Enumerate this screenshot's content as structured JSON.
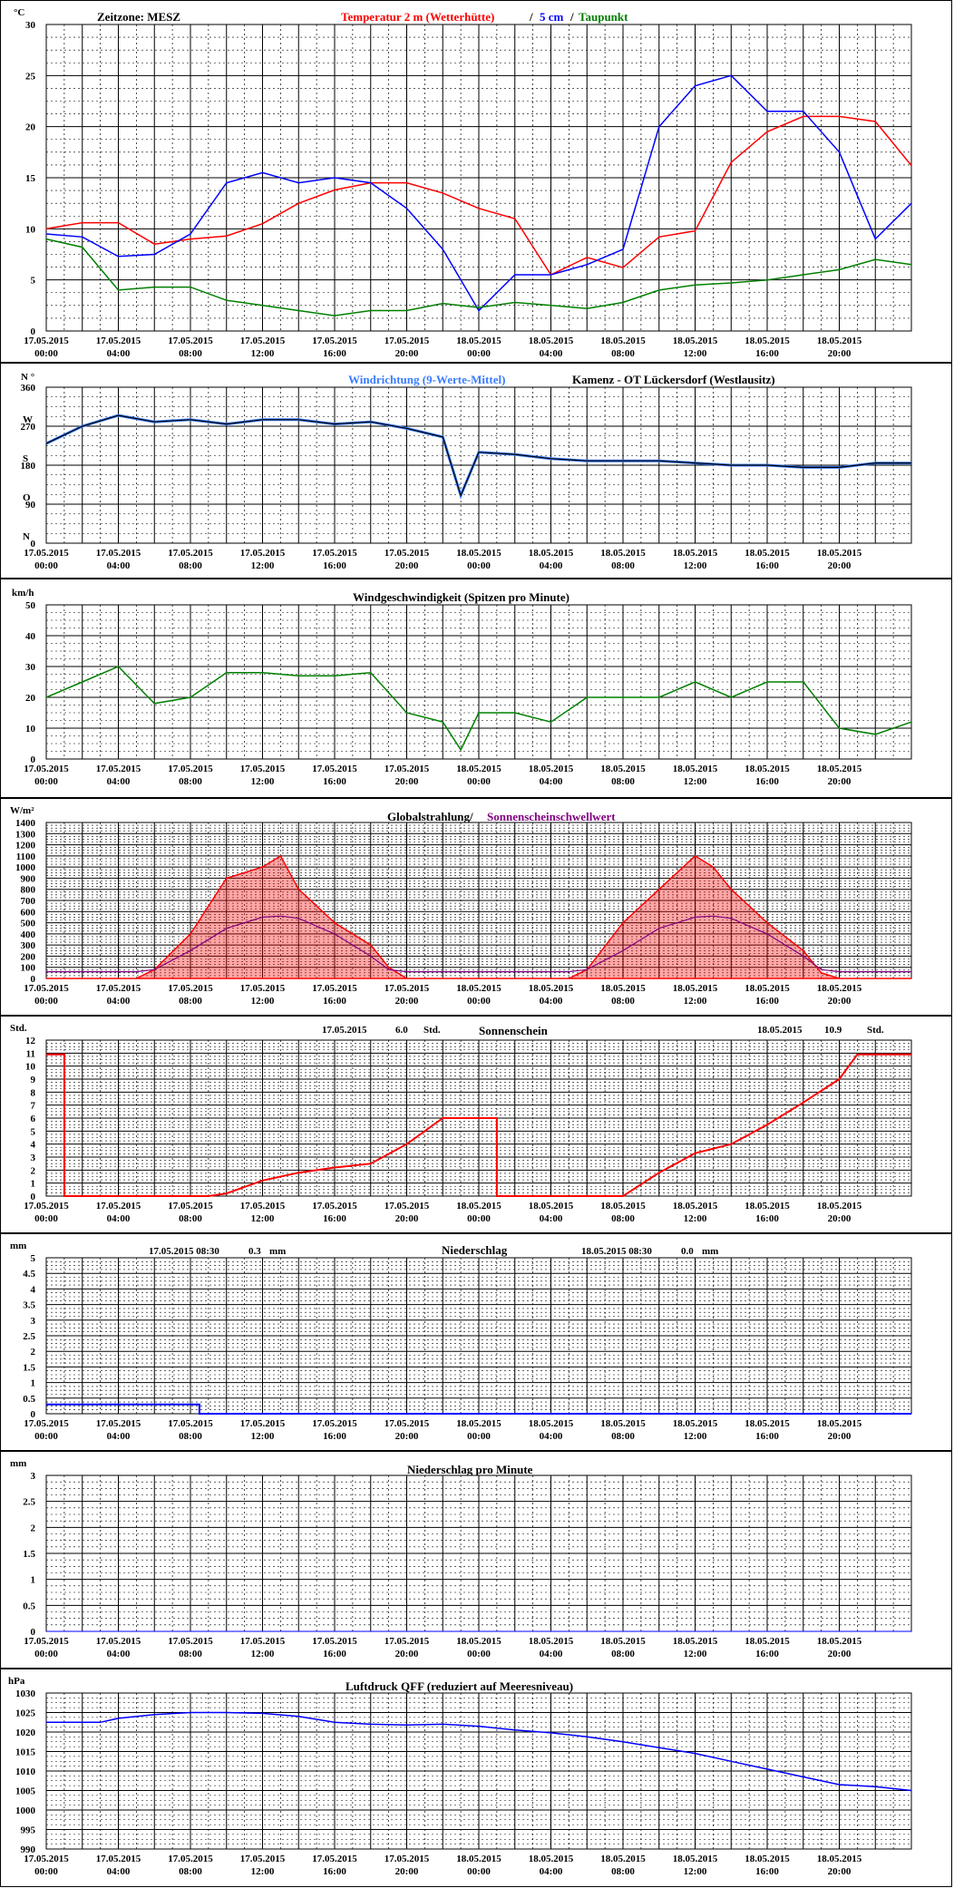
{
  "x_tick_labels": [
    {
      "date": "17.05.2015",
      "time": "00:00"
    },
    {
      "date": "17.05.2015",
      "time": "04:00"
    },
    {
      "date": "17.05.2015",
      "time": "08:00"
    },
    {
      "date": "17.05.2015",
      "time": "12:00"
    },
    {
      "date": "17.05.2015",
      "time": "16:00"
    },
    {
      "date": "17.05.2015",
      "time": "20:00"
    },
    {
      "date": "18.05.2015",
      "time": "00:00"
    },
    {
      "date": "18.05.2015",
      "time": "04:00"
    },
    {
      "date": "18.05.2015",
      "time": "08:00"
    },
    {
      "date": "18.05.2015",
      "time": "12:00"
    },
    {
      "date": "18.05.2015",
      "time": "16:00"
    },
    {
      "date": "18.05.2015",
      "time": "20:00"
    }
  ],
  "colors": {
    "grid": "#000000",
    "temperature": "#ff0000",
    "soil_5cm": "#0000ff",
    "dewpoint": "#008000",
    "wind_dir": "#3a7dff",
    "wind_dir_mean": "#000000",
    "wind_speed": "#008000",
    "radiation": "#ff0000",
    "threshold": "#800080",
    "sunshine": "#ff0000",
    "precip": "#0000ff",
    "pressure": "#0000ff"
  },
  "panels": {
    "temperature": {
      "unit": "°C",
      "timezone_label": "Zeitzone: MESZ",
      "legend_temp": "Temperatur 2 m (Wetterhütte)",
      "legend_sep1": "/",
      "legend_soil": "5 cm",
      "legend_sep2": "/",
      "legend_dew": "Taupunkt"
    },
    "wind_dir": {
      "unit": "N °",
      "legend_dir": "Windrichtung (9-Werte-Mittel)",
      "station": "Kamenz - OT Lückersdorf (Westlausitz)",
      "cardinals": [
        "N",
        "O",
        "S",
        "W"
      ]
    },
    "wind_speed": {
      "unit": "km/h",
      "title": "Windgeschwindigkeit (Spitzen pro Minute)"
    },
    "radiation": {
      "unit": "W/m²",
      "title_a": "Globalstrahlung/",
      "title_b": "Sonnenscheinschwellwert"
    },
    "sunshine": {
      "unit": "Std.",
      "title": "Sonnenschein",
      "day1_date": "17.05.2015",
      "day1_value": "6.0",
      "day1_unit": "Std.",
      "day2_date": "18.05.2015",
      "day2_value": "10.9",
      "day2_unit": "Std."
    },
    "precip": {
      "unit": "mm",
      "title": "Niederschlag",
      "day1_stamp": "17.05.2015 08:30",
      "day1_value": "0.3",
      "day1_unit": "mm",
      "day2_stamp": "18.05.2015 08:30",
      "day2_value": "0.0",
      "day2_unit": "mm"
    },
    "precip_minute": {
      "unit": "mm",
      "title": "Niederschlag pro Minute"
    },
    "pressure": {
      "unit": "hPa",
      "title": "Luftdruck QFF (reduziert auf Meeresniveau)"
    }
  },
  "chart_data": [
    {
      "type": "line",
      "title": "Temperatur 2 m (Wetterhütte) / 5 cm / Taupunkt",
      "ylabel": "°C",
      "ylim": [
        0,
        30
      ],
      "yticks": [
        0,
        5,
        10,
        15,
        20,
        25,
        30
      ],
      "x_hours": [
        0,
        2,
        4,
        6,
        8,
        10,
        12,
        14,
        16,
        18,
        20,
        22,
        24,
        26,
        28,
        30,
        32,
        34,
        36,
        38,
        40,
        42,
        44,
        46,
        48
      ],
      "series": [
        {
          "name": "Temperatur 2 m (Wetterhütte)",
          "values": [
            10,
            10.6,
            10.6,
            8.5,
            9,
            9.3,
            10.5,
            12.5,
            13.8,
            14.5,
            14.5,
            13.5,
            12,
            11,
            5.5,
            7.2,
            6.2,
            9.2,
            9.8,
            16.5,
            19.5,
            21,
            21,
            20.5,
            16.2
          ]
        },
        {
          "name": "5 cm",
          "values": [
            9.5,
            9.2,
            7.3,
            7.5,
            9.5,
            14.5,
            15.5,
            14.5,
            15,
            14.5,
            12,
            8,
            2,
            5.5,
            5.5,
            6.5,
            8,
            20,
            24,
            25,
            21.5,
            21.5,
            17.5,
            9,
            12.5
          ]
        },
        {
          "name": "Taupunkt",
          "values": [
            9,
            8.2,
            4,
            4.3,
            4.3,
            3,
            2.5,
            2,
            1.5,
            2,
            2,
            2.7,
            2.3,
            2.8,
            2.5,
            2.2,
            2.8,
            4,
            4.5,
            4.7,
            5,
            5.5,
            6,
            7,
            6.5
          ]
        }
      ]
    },
    {
      "type": "line",
      "title": "Windrichtung (9-Werte-Mittel)",
      "ylabel": "N °",
      "ylim": [
        0,
        360
      ],
      "yticks": [
        0,
        90,
        180,
        270,
        360
      ],
      "x_hours": [
        0,
        2,
        4,
        6,
        8,
        10,
        12,
        14,
        16,
        18,
        20,
        22,
        23,
        24,
        26,
        28,
        30,
        32,
        34,
        36,
        38,
        40,
        42,
        44,
        46,
        48
      ],
      "series": [
        {
          "name": "Windrichtung (9-Werte-Mittel)",
          "values": [
            230,
            270,
            295,
            280,
            285,
            275,
            285,
            285,
            275,
            280,
            265,
            245,
            110,
            210,
            205,
            195,
            190,
            190,
            190,
            185,
            180,
            180,
            175,
            175,
            185,
            185
          ]
        }
      ]
    },
    {
      "type": "line",
      "title": "Windgeschwindigkeit (Spitzen pro Minute)",
      "ylabel": "km/h",
      "ylim": [
        0,
        50
      ],
      "yticks": [
        0,
        10,
        20,
        30,
        40,
        50
      ],
      "x_hours": [
        0,
        2,
        4,
        6,
        8,
        10,
        12,
        14,
        16,
        18,
        20,
        22,
        23,
        24,
        26,
        28,
        30,
        32,
        34,
        36,
        38,
        40,
        42,
        44,
        46,
        48
      ],
      "series": [
        {
          "name": "Windgeschwindigkeit",
          "values": [
            20,
            25,
            30,
            18,
            20,
            28,
            28,
            27,
            27,
            28,
            15,
            12,
            3,
            15,
            15,
            12,
            20,
            20,
            20,
            25,
            20,
            25,
            25,
            10,
            8,
            12
          ]
        }
      ]
    },
    {
      "type": "area",
      "title": "Globalstrahlung/ Sonnenscheinschwellwert",
      "ylabel": "W/m²",
      "ylim": [
        0,
        1400
      ],
      "yticks": [
        0,
        100,
        200,
        300,
        400,
        500,
        600,
        700,
        800,
        900,
        1000,
        1100,
        1200,
        1300,
        1400
      ],
      "x_hours": [
        0,
        4,
        5,
        6,
        8,
        10,
        12,
        13,
        14,
        16,
        18,
        19,
        20,
        24,
        28,
        29,
        30,
        32,
        34,
        36,
        37,
        38,
        40,
        42,
        43,
        44,
        48
      ],
      "series": [
        {
          "name": "Globalstrahlung",
          "values": [
            0,
            0,
            0,
            80,
            400,
            900,
            1000,
            1100,
            800,
            500,
            300,
            100,
            0,
            0,
            0,
            0,
            80,
            500,
            800,
            1100,
            1000,
            800,
            500,
            250,
            50,
            0,
            0
          ]
        },
        {
          "name": "Sonnenscheinschwellwert",
          "values": [
            60,
            60,
            60,
            80,
            250,
            450,
            550,
            560,
            540,
            400,
            200,
            80,
            60,
            60,
            60,
            60,
            80,
            250,
            450,
            550,
            560,
            540,
            400,
            200,
            80,
            60,
            60
          ]
        }
      ]
    },
    {
      "type": "line",
      "title": "Sonnenschein",
      "ylabel": "Std.",
      "ylim": [
        0,
        12
      ],
      "yticks": [
        0,
        1,
        2,
        3,
        4,
        5,
        6,
        7,
        8,
        9,
        10,
        11,
        12
      ],
      "x_hours": [
        0,
        1,
        1,
        9,
        10,
        12,
        14,
        16,
        18,
        20,
        22,
        24,
        25,
        25,
        32,
        34,
        36,
        38,
        40,
        42,
        44,
        45,
        48
      ],
      "series": [
        {
          "name": "Sonnenschein",
          "values": [
            10.9,
            10.9,
            0,
            0,
            0.2,
            1.2,
            1.8,
            2.2,
            2.5,
            4,
            6,
            6,
            6,
            0,
            0,
            1.8,
            3.3,
            4,
            5.5,
            7.2,
            9,
            10.9,
            10.9
          ]
        }
      ]
    },
    {
      "type": "line",
      "title": "Niederschlag",
      "ylabel": "mm",
      "ylim": [
        0,
        5
      ],
      "yticks": [
        0,
        0.5,
        1,
        1.5,
        2,
        2.5,
        3,
        3.5,
        4,
        4.5,
        5
      ],
      "x_hours": [
        0,
        8.5,
        8.5,
        48
      ],
      "series": [
        {
          "name": "Niederschlag",
          "values": [
            0.3,
            0.3,
            0,
            0
          ]
        }
      ]
    },
    {
      "type": "bar",
      "title": "Niederschlag pro Minute",
      "ylabel": "mm",
      "ylim": [
        0,
        3
      ],
      "yticks": [
        0,
        0.5,
        1,
        1.5,
        2,
        2.5,
        3
      ],
      "x_hours": [
        0,
        48
      ],
      "series": [
        {
          "name": "Niederschlag pro Minute",
          "values": [
            0,
            0
          ]
        }
      ]
    },
    {
      "type": "line",
      "title": "Luftdruck QFF (reduziert auf Meeresniveau)",
      "ylabel": "hPa",
      "ylim": [
        990,
        1030
      ],
      "yticks": [
        990,
        995,
        1000,
        1005,
        1010,
        1015,
        1020,
        1025,
        1030
      ],
      "x_hours": [
        0,
        3,
        4,
        6,
        8,
        10,
        12,
        14,
        16,
        18,
        20,
        22,
        24,
        26,
        28,
        30,
        32,
        34,
        36,
        38,
        40,
        42,
        44,
        46,
        48
      ],
      "series": [
        {
          "name": "Luftdruck QFF",
          "values": [
            1022.5,
            1022.5,
            1023.5,
            1024.5,
            1025,
            1025,
            1024.8,
            1024,
            1022.5,
            1022,
            1021.8,
            1022,
            1021.5,
            1020.5,
            1019.8,
            1018.8,
            1017.5,
            1016,
            1014.5,
            1012.5,
            1010.5,
            1008.5,
            1006.5,
            1006,
            1005
          ]
        }
      ]
    }
  ]
}
